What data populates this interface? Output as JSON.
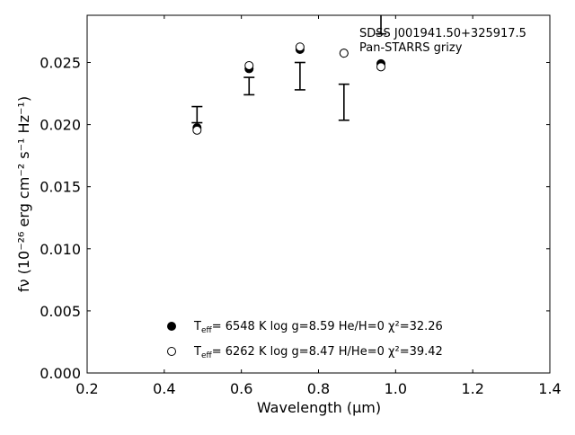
{
  "chart_data": {
    "type": "scatter",
    "xlabel": "Wavelength (μm)",
    "ylabel": "fν (10⁻²⁶ erg cm⁻² s⁻¹ Hz⁻¹)",
    "xlim": [
      0.2,
      1.4
    ],
    "ylim": [
      0.0,
      0.0288
    ],
    "x_ticks": [
      "0.2",
      "0.4",
      "0.6",
      "0.8",
      "1.0",
      "1.2",
      "1.4"
    ],
    "y_ticks": [
      "0.000",
      "0.005",
      "0.010",
      "0.015",
      "0.020",
      "0.025"
    ],
    "annotations": [
      "SDSS J001941.50+325917.5",
      "Pan-STARRS grizy"
    ],
    "grid": false,
    "legend_placement": "lower-center",
    "observed": {
      "name": "",
      "x": [
        0.485,
        0.62,
        0.752,
        0.866,
        0.962
      ],
      "y": [
        0.0208,
        0.0231,
        0.0239,
        0.0218,
        0.0288
      ],
      "y_err": [
        0.00065,
        0.0007,
        0.0011,
        0.00145,
        0.0015
      ]
    },
    "series": [
      {
        "name": "He/H=0",
        "marker": "filled-circle",
        "x": [
          0.485,
          0.62,
          0.752,
          0.866,
          0.962
        ],
        "y": [
          0.01975,
          0.0245,
          0.02605,
          0.02575,
          0.0249
        ],
        "legend": {
          "teff_label": "T",
          "teff_sub": "eff",
          "text": "=  6548 K  log g=8.59  He/H=0  χ²=32.26"
        }
      },
      {
        "name": "H/He=0",
        "marker": "open-circle",
        "x": [
          0.485,
          0.62,
          0.752,
          0.866,
          0.962
        ],
        "y": [
          0.01955,
          0.02475,
          0.02625,
          0.02575,
          0.02465
        ],
        "legend": {
          "teff_label": "T",
          "teff_sub": "eff",
          "text": "=  6262 K  log g=8.47  H/He=0  χ²=39.42"
        }
      }
    ]
  }
}
